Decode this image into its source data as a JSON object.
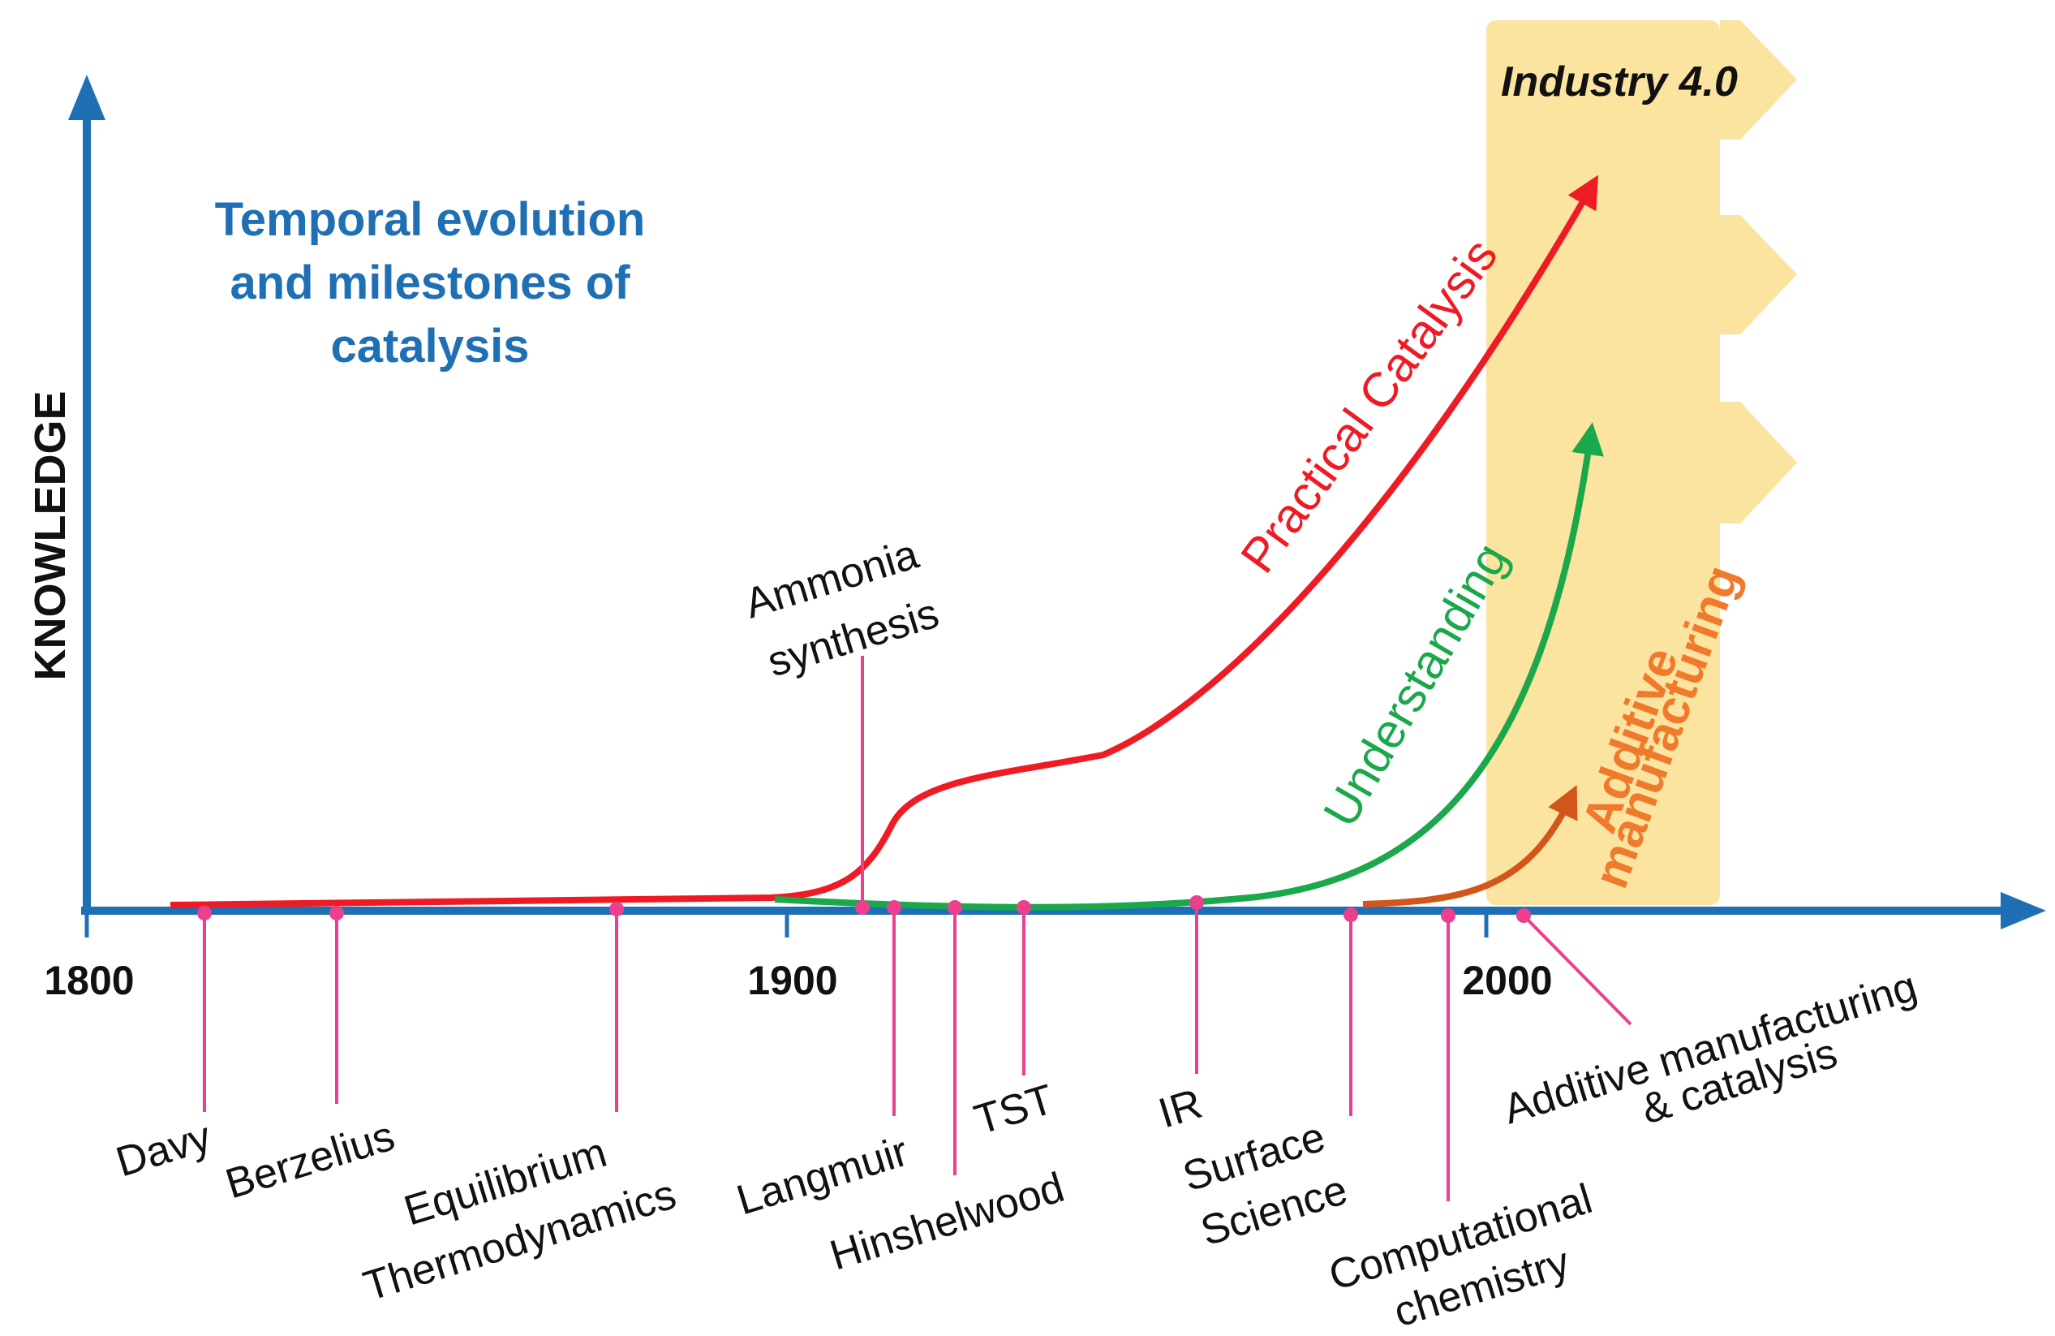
{
  "title_lines": [
    "Temporal evolution",
    "and milestones of",
    "catalysis"
  ],
  "y_axis_label": "KNOWLEDGE",
  "x_ticks": [
    "1800",
    "1900",
    "2000"
  ],
  "industry_label": "Industry 4.0",
  "curves": {
    "practical": "Practical Catalysis",
    "understanding": "Understanding",
    "additive_line1": "Additive",
    "additive_line2": "manufacturing"
  },
  "ammonia": [
    "Ammonia",
    "synthesis"
  ],
  "milestones": {
    "davy": "Davy",
    "berzelius": "Berzelius",
    "equilibrium_1": "Equilibrium",
    "equilibrium_2": "Thermodynamics",
    "langmuir": "Langmuir",
    "hinshelwood": "Hinshelwood",
    "tst": "TST",
    "ir": "IR",
    "surface_1": "Surface",
    "surface_2": "Science",
    "computational_1": "Computational",
    "computational_2": "chemistry",
    "additive_1": "Additive manufacturing",
    "additive_2": "& catalysis"
  },
  "colors": {
    "axis": "#1f6fb5",
    "practical": "#ee1b24",
    "understanding": "#1aa84a",
    "additive": "#d2561c",
    "additive_label": "#f07a2c",
    "milestone": "#ec3f8e",
    "industry_band": "#fbe3a0"
  }
}
